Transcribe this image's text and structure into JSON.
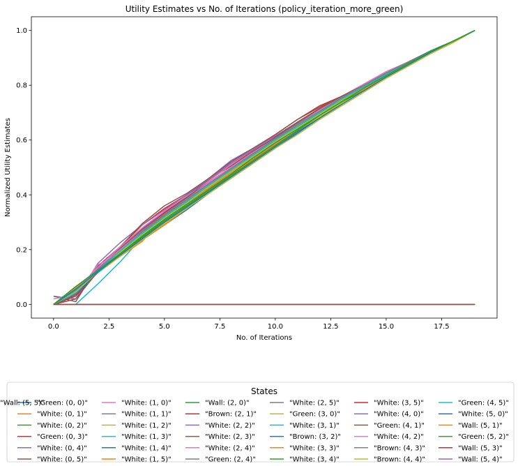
{
  "chart_data": {
    "type": "line",
    "title": "Utility Estimates vs No. of Iterations (policy_iteration_more_green)",
    "xlabel": "No. of Iterations",
    "ylabel": "Normalized Utility Estimates",
    "xlim": [
      -1.0,
      20.0
    ],
    "ylim": [
      -0.05,
      1.05
    ],
    "xticks": [
      0.0,
      2.5,
      5.0,
      7.5,
      10.0,
      12.5,
      15.0,
      17.5
    ],
    "xtick_labels": [
      "0.0",
      "2.5",
      "5.0",
      "7.5",
      "10.0",
      "12.5",
      "15.0",
      "17.5"
    ],
    "yticks": [
      0.0,
      0.2,
      0.4,
      0.6,
      0.8,
      1.0
    ],
    "ytick_labels": [
      "0.0",
      "0.2",
      "0.4",
      "0.6",
      "0.8",
      "1.0"
    ],
    "grid": false,
    "legend_title": "States",
    "legend_position": "bottom-center",
    "legend_columns": 6,
    "x": [
      0,
      1,
      2,
      3,
      4,
      5,
      6,
      7,
      8,
      9,
      10,
      11,
      12,
      13,
      14,
      15,
      16,
      17,
      18,
      19
    ],
    "series": [
      {
        "name": "\"Green: (0, 0)\"",
        "color": "#1f77b4",
        "values": [
          0.0,
          0.055,
          0.12,
          0.18,
          0.235,
          0.29,
          0.345,
          0.405,
          0.46,
          0.515,
          0.57,
          0.625,
          0.68,
          0.735,
          0.785,
          0.835,
          0.875,
          0.92,
          0.96,
          1.0
        ]
      },
      {
        "name": "\"White: (0, 1)\"",
        "color": "#ff7f0e",
        "values": [
          0.0,
          0.06,
          0.12,
          0.175,
          0.235,
          0.29,
          0.35,
          0.41,
          0.47,
          0.525,
          0.58,
          0.635,
          0.69,
          0.74,
          0.79,
          0.835,
          0.88,
          0.925,
          0.96,
          1.0
        ]
      },
      {
        "name": "\"White: (0, 2)\"",
        "color": "#2ca02c",
        "values": [
          0.0,
          0.065,
          0.125,
          0.185,
          0.245,
          0.3,
          0.355,
          0.415,
          0.47,
          0.525,
          0.58,
          0.635,
          0.69,
          0.74,
          0.79,
          0.84,
          0.88,
          0.925,
          0.96,
          1.0
        ]
      },
      {
        "name": "\"Green: (0, 3)\"",
        "color": "#d62728",
        "values": [
          0.0,
          0.02,
          0.14,
          0.21,
          0.29,
          0.35,
          0.4,
          0.46,
          0.52,
          0.57,
          0.62,
          0.675,
          0.725,
          0.76,
          0.8,
          0.845,
          0.885,
          0.925,
          0.96,
          1.0
        ]
      },
      {
        "name": "\"White: (0, 4)\"",
        "color": "#9467bd",
        "values": [
          0.03,
          0.02,
          0.15,
          0.225,
          0.29,
          0.345,
          0.4,
          0.46,
          0.525,
          0.57,
          0.615,
          0.665,
          0.715,
          0.76,
          0.8,
          0.845,
          0.885,
          0.925,
          0.96,
          1.0
        ]
      },
      {
        "name": "\"White: (0, 5)\"",
        "color": "#8c564b",
        "values": [
          0.03,
          0.01,
          0.14,
          0.21,
          0.295,
          0.36,
          0.405,
          0.46,
          0.52,
          0.57,
          0.62,
          0.675,
          0.72,
          0.76,
          0.8,
          0.845,
          0.885,
          0.925,
          0.96,
          1.0
        ]
      },
      {
        "name": "\"White: (1, 0)\"",
        "color": "#e377c2",
        "values": [
          0.02,
          0.035,
          0.145,
          0.185,
          0.25,
          0.31,
          0.37,
          0.425,
          0.48,
          0.535,
          0.59,
          0.64,
          0.695,
          0.745,
          0.795,
          0.84,
          0.88,
          0.925,
          0.96,
          1.0
        ]
      },
      {
        "name": "\"White: (1, 1)\"",
        "color": "#7f7f7f",
        "values": [
          0.0,
          0.05,
          0.12,
          0.185,
          0.245,
          0.305,
          0.36,
          0.415,
          0.475,
          0.53,
          0.585,
          0.635,
          0.69,
          0.74,
          0.79,
          0.835,
          0.88,
          0.925,
          0.96,
          1.0
        ]
      },
      {
        "name": "\"White: (1, 2)\"",
        "color": "#bcbd22",
        "values": [
          0.0,
          0.055,
          0.125,
          0.185,
          0.24,
          0.3,
          0.355,
          0.41,
          0.465,
          0.52,
          0.575,
          0.63,
          0.685,
          0.735,
          0.785,
          0.83,
          0.87,
          0.915,
          0.955,
          1.0
        ]
      },
      {
        "name": "\"White: (1, 3)\"",
        "color": "#17becf",
        "values": [
          0.0,
          0.0,
          0.075,
          0.155,
          0.245,
          0.31,
          0.37,
          0.43,
          0.485,
          0.54,
          0.595,
          0.645,
          0.695,
          0.745,
          0.79,
          0.835,
          0.875,
          0.92,
          0.96,
          1.0
        ]
      },
      {
        "name": "\"White: (1, 4)\"",
        "color": "#1f77b4",
        "values": [
          0.0,
          0.04,
          0.125,
          0.2,
          0.265,
          0.325,
          0.385,
          0.44,
          0.495,
          0.55,
          0.605,
          0.655,
          0.705,
          0.755,
          0.8,
          0.845,
          0.885,
          0.925,
          0.96,
          1.0
        ]
      },
      {
        "name": "\"White: (1, 5)\"",
        "color": "#ff7f0e",
        "values": [
          0.0,
          0.06,
          0.12,
          0.175,
          0.23,
          0.32,
          0.36,
          0.42,
          0.475,
          0.53,
          0.585,
          0.635,
          0.69,
          0.74,
          0.785,
          0.835,
          0.88,
          0.925,
          0.96,
          1.0
        ]
      },
      {
        "name": "\"Wall: (2, 0)\"",
        "color": "#2ca02c",
        "values": [
          0.0,
          0.0,
          0.0,
          0.0,
          0.0,
          0.0,
          0.0,
          0.0,
          0.0,
          0.0,
          0.0,
          0.0,
          0.0,
          0.0,
          0.0,
          0.0,
          0.0,
          0.0,
          0.0,
          0.0
        ]
      },
      {
        "name": "\"Brown: (2, 1)\"",
        "color": "#d62728",
        "values": [
          0.0,
          0.03,
          0.13,
          0.2,
          0.27,
          0.335,
          0.39,
          0.445,
          0.5,
          0.555,
          0.61,
          0.66,
          0.71,
          0.755,
          0.8,
          0.845,
          0.885,
          0.925,
          0.96,
          1.0
        ]
      },
      {
        "name": "\"White: (2, 2)\"",
        "color": "#9467bd",
        "values": [
          0.0,
          0.045,
          0.135,
          0.2,
          0.27,
          0.335,
          0.395,
          0.455,
          0.51,
          0.56,
          0.61,
          0.66,
          0.71,
          0.755,
          0.8,
          0.845,
          0.885,
          0.925,
          0.96,
          1.0
        ]
      },
      {
        "name": "\"White: (2, 3)\"",
        "color": "#8c564b",
        "values": [
          0.0,
          0.04,
          0.13,
          0.205,
          0.275,
          0.34,
          0.395,
          0.455,
          0.505,
          0.56,
          0.61,
          0.665,
          0.715,
          0.76,
          0.8,
          0.845,
          0.885,
          0.925,
          0.96,
          1.0
        ]
      },
      {
        "name": "\"White: (2, 4)\"",
        "color": "#e377c2",
        "values": [
          0.0,
          0.045,
          0.135,
          0.21,
          0.28,
          0.34,
          0.395,
          0.45,
          0.51,
          0.565,
          0.615,
          0.665,
          0.715,
          0.76,
          0.805,
          0.85,
          0.885,
          0.925,
          0.96,
          1.0
        ]
      },
      {
        "name": "\"Green: (2, 4)\"",
        "color": "#7f7f7f",
        "values": [
          0.0,
          0.05,
          0.13,
          0.2,
          0.27,
          0.335,
          0.39,
          0.445,
          0.5,
          0.555,
          0.61,
          0.66,
          0.71,
          0.755,
          0.8,
          0.845,
          0.885,
          0.925,
          0.96,
          1.0
        ]
      },
      {
        "name": "\"White: (2, 5)\"",
        "color": "#7f7f7f",
        "values": [
          0.0,
          0.05,
          0.125,
          0.195,
          0.26,
          0.325,
          0.38,
          0.44,
          0.495,
          0.55,
          0.6,
          0.655,
          0.705,
          0.75,
          0.795,
          0.84,
          0.88,
          0.925,
          0.96,
          1.0
        ]
      },
      {
        "name": "\"Green: (3, 0)\"",
        "color": "#bcbd22",
        "values": [
          0.0,
          0.055,
          0.115,
          0.175,
          0.235,
          0.295,
          0.35,
          0.405,
          0.46,
          0.515,
          0.57,
          0.62,
          0.675,
          0.725,
          0.775,
          0.825,
          0.87,
          0.915,
          0.955,
          1.0
        ]
      },
      {
        "name": "\"White: (3, 1)\"",
        "color": "#17becf",
        "values": [
          0.0,
          0.04,
          0.115,
          0.185,
          0.25,
          0.31,
          0.37,
          0.43,
          0.485,
          0.54,
          0.595,
          0.645,
          0.7,
          0.75,
          0.795,
          0.84,
          0.88,
          0.925,
          0.96,
          1.0
        ]
      },
      {
        "name": "\"Brown: (3, 2)\"",
        "color": "#1f77b4",
        "values": [
          0.0,
          0.035,
          0.12,
          0.19,
          0.255,
          0.32,
          0.375,
          0.435,
          0.49,
          0.545,
          0.6,
          0.65,
          0.7,
          0.75,
          0.795,
          0.84,
          0.88,
          0.925,
          0.96,
          1.0
        ]
      },
      {
        "name": "\"White: (3, 3)\"",
        "color": "#ff7f0e",
        "values": [
          0.0,
          0.05,
          0.125,
          0.19,
          0.255,
          0.315,
          0.37,
          0.425,
          0.48,
          0.535,
          0.59,
          0.64,
          0.695,
          0.745,
          0.79,
          0.835,
          0.88,
          0.925,
          0.96,
          1.0
        ]
      },
      {
        "name": "\"White: (3, 4)\"",
        "color": "#2ca02c",
        "values": [
          0.0,
          0.045,
          0.12,
          0.185,
          0.25,
          0.31,
          0.365,
          0.42,
          0.475,
          0.535,
          0.59,
          0.64,
          0.69,
          0.74,
          0.78,
          0.83,
          0.875,
          0.92,
          0.96,
          1.0
        ]
      },
      {
        "name": "\"White: (3, 5)\"",
        "color": "#d62728",
        "values": [
          0.0,
          0.04,
          0.13,
          0.2,
          0.27,
          0.335,
          0.39,
          0.445,
          0.5,
          0.555,
          0.61,
          0.665,
          0.715,
          0.76,
          0.8,
          0.845,
          0.885,
          0.925,
          0.96,
          1.0
        ]
      },
      {
        "name": "\"White: (4, 0)\"",
        "color": "#9467bd",
        "values": [
          0.0,
          0.04,
          0.13,
          0.2,
          0.27,
          0.33,
          0.39,
          0.455,
          0.515,
          0.565,
          0.615,
          0.665,
          0.715,
          0.76,
          0.8,
          0.845,
          0.885,
          0.925,
          0.96,
          1.0
        ]
      },
      {
        "name": "\"Green: (4, 1)\"",
        "color": "#8c564b",
        "values": [
          0.0,
          0.02,
          0.12,
          0.195,
          0.265,
          0.33,
          0.39,
          0.445,
          0.5,
          0.555,
          0.61,
          0.665,
          0.715,
          0.76,
          0.8,
          0.845,
          0.885,
          0.925,
          0.96,
          1.0
        ]
      },
      {
        "name": "\"White: (4, 2)\"",
        "color": "#e377c2",
        "values": [
          0.0,
          0.045,
          0.135,
          0.2,
          0.265,
          0.33,
          0.385,
          0.445,
          0.5,
          0.555,
          0.605,
          0.655,
          0.71,
          0.755,
          0.8,
          0.845,
          0.885,
          0.925,
          0.96,
          1.0
        ]
      },
      {
        "name": "\"Brown: (4, 3)\"",
        "color": "#7f7f7f",
        "values": [
          0.0,
          0.04,
          0.125,
          0.195,
          0.265,
          0.33,
          0.385,
          0.44,
          0.495,
          0.55,
          0.605,
          0.655,
          0.705,
          0.755,
          0.8,
          0.845,
          0.885,
          0.925,
          0.96,
          1.0
        ]
      },
      {
        "name": "\"Brown: (4, 4)\"",
        "color": "#bcbd22",
        "values": [
          0.0,
          0.045,
          0.12,
          0.19,
          0.255,
          0.315,
          0.37,
          0.43,
          0.485,
          0.54,
          0.595,
          0.645,
          0.695,
          0.745,
          0.79,
          0.835,
          0.875,
          0.92,
          0.96,
          1.0
        ]
      },
      {
        "name": "\"Green: (4, 5)\"",
        "color": "#17becf",
        "values": [
          0.0,
          0.05,
          0.125,
          0.195,
          0.26,
          0.32,
          0.375,
          0.435,
          0.49,
          0.545,
          0.6,
          0.65,
          0.7,
          0.75,
          0.795,
          0.84,
          0.88,
          0.925,
          0.96,
          1.0
        ]
      },
      {
        "name": "\"White: (5, 0)\"",
        "color": "#1f77b4",
        "values": [
          0.0,
          0.055,
          0.12,
          0.18,
          0.24,
          0.3,
          0.355,
          0.41,
          0.465,
          0.52,
          0.575,
          0.63,
          0.68,
          0.73,
          0.78,
          0.83,
          0.875,
          0.92,
          0.96,
          1.0
        ]
      },
      {
        "name": "\"Wall: (5, 1)\"",
        "color": "#ff7f0e",
        "values": [
          0.0,
          0.0,
          0.0,
          0.0,
          0.0,
          0.0,
          0.0,
          0.0,
          0.0,
          0.0,
          0.0,
          0.0,
          0.0,
          0.0,
          0.0,
          0.0,
          0.0,
          0.0,
          0.0,
          0.0
        ]
      },
      {
        "name": "\"Green: (5, 2)\"",
        "color": "#2ca02c",
        "values": [
          0.0,
          0.065,
          0.125,
          0.185,
          0.245,
          0.305,
          0.36,
          0.415,
          0.47,
          0.525,
          0.58,
          0.635,
          0.69,
          0.74,
          0.79,
          0.835,
          0.88,
          0.925,
          0.96,
          1.0
        ]
      },
      {
        "name": "\"Wall: (5, 3)\"",
        "color": "#d62728",
        "values": [
          0.0,
          0.0,
          0.0,
          0.0,
          0.0,
          0.0,
          0.0,
          0.0,
          0.0,
          0.0,
          0.0,
          0.0,
          0.0,
          0.0,
          0.0,
          0.0,
          0.0,
          0.0,
          0.0,
          0.0
        ]
      },
      {
        "name": "\"Wall: (5, 4)\"",
        "color": "#9467bd",
        "values": [
          0.0,
          0.0,
          0.0,
          0.0,
          0.0,
          0.0,
          0.0,
          0.0,
          0.0,
          0.0,
          0.0,
          0.0,
          0.0,
          0.0,
          0.0,
          0.0,
          0.0,
          0.0,
          0.0,
          0.0
        ]
      },
      {
        "name": "\"Wall: (5, 5)\"",
        "color": "#8c564b",
        "values": [
          0.0,
          0.0,
          0.0,
          0.0,
          0.0,
          0.0,
          0.0,
          0.0,
          0.0,
          0.0,
          0.0,
          0.0,
          0.0,
          0.0,
          0.0,
          0.0,
          0.0,
          0.0,
          0.0,
          0.0
        ]
      }
    ]
  }
}
